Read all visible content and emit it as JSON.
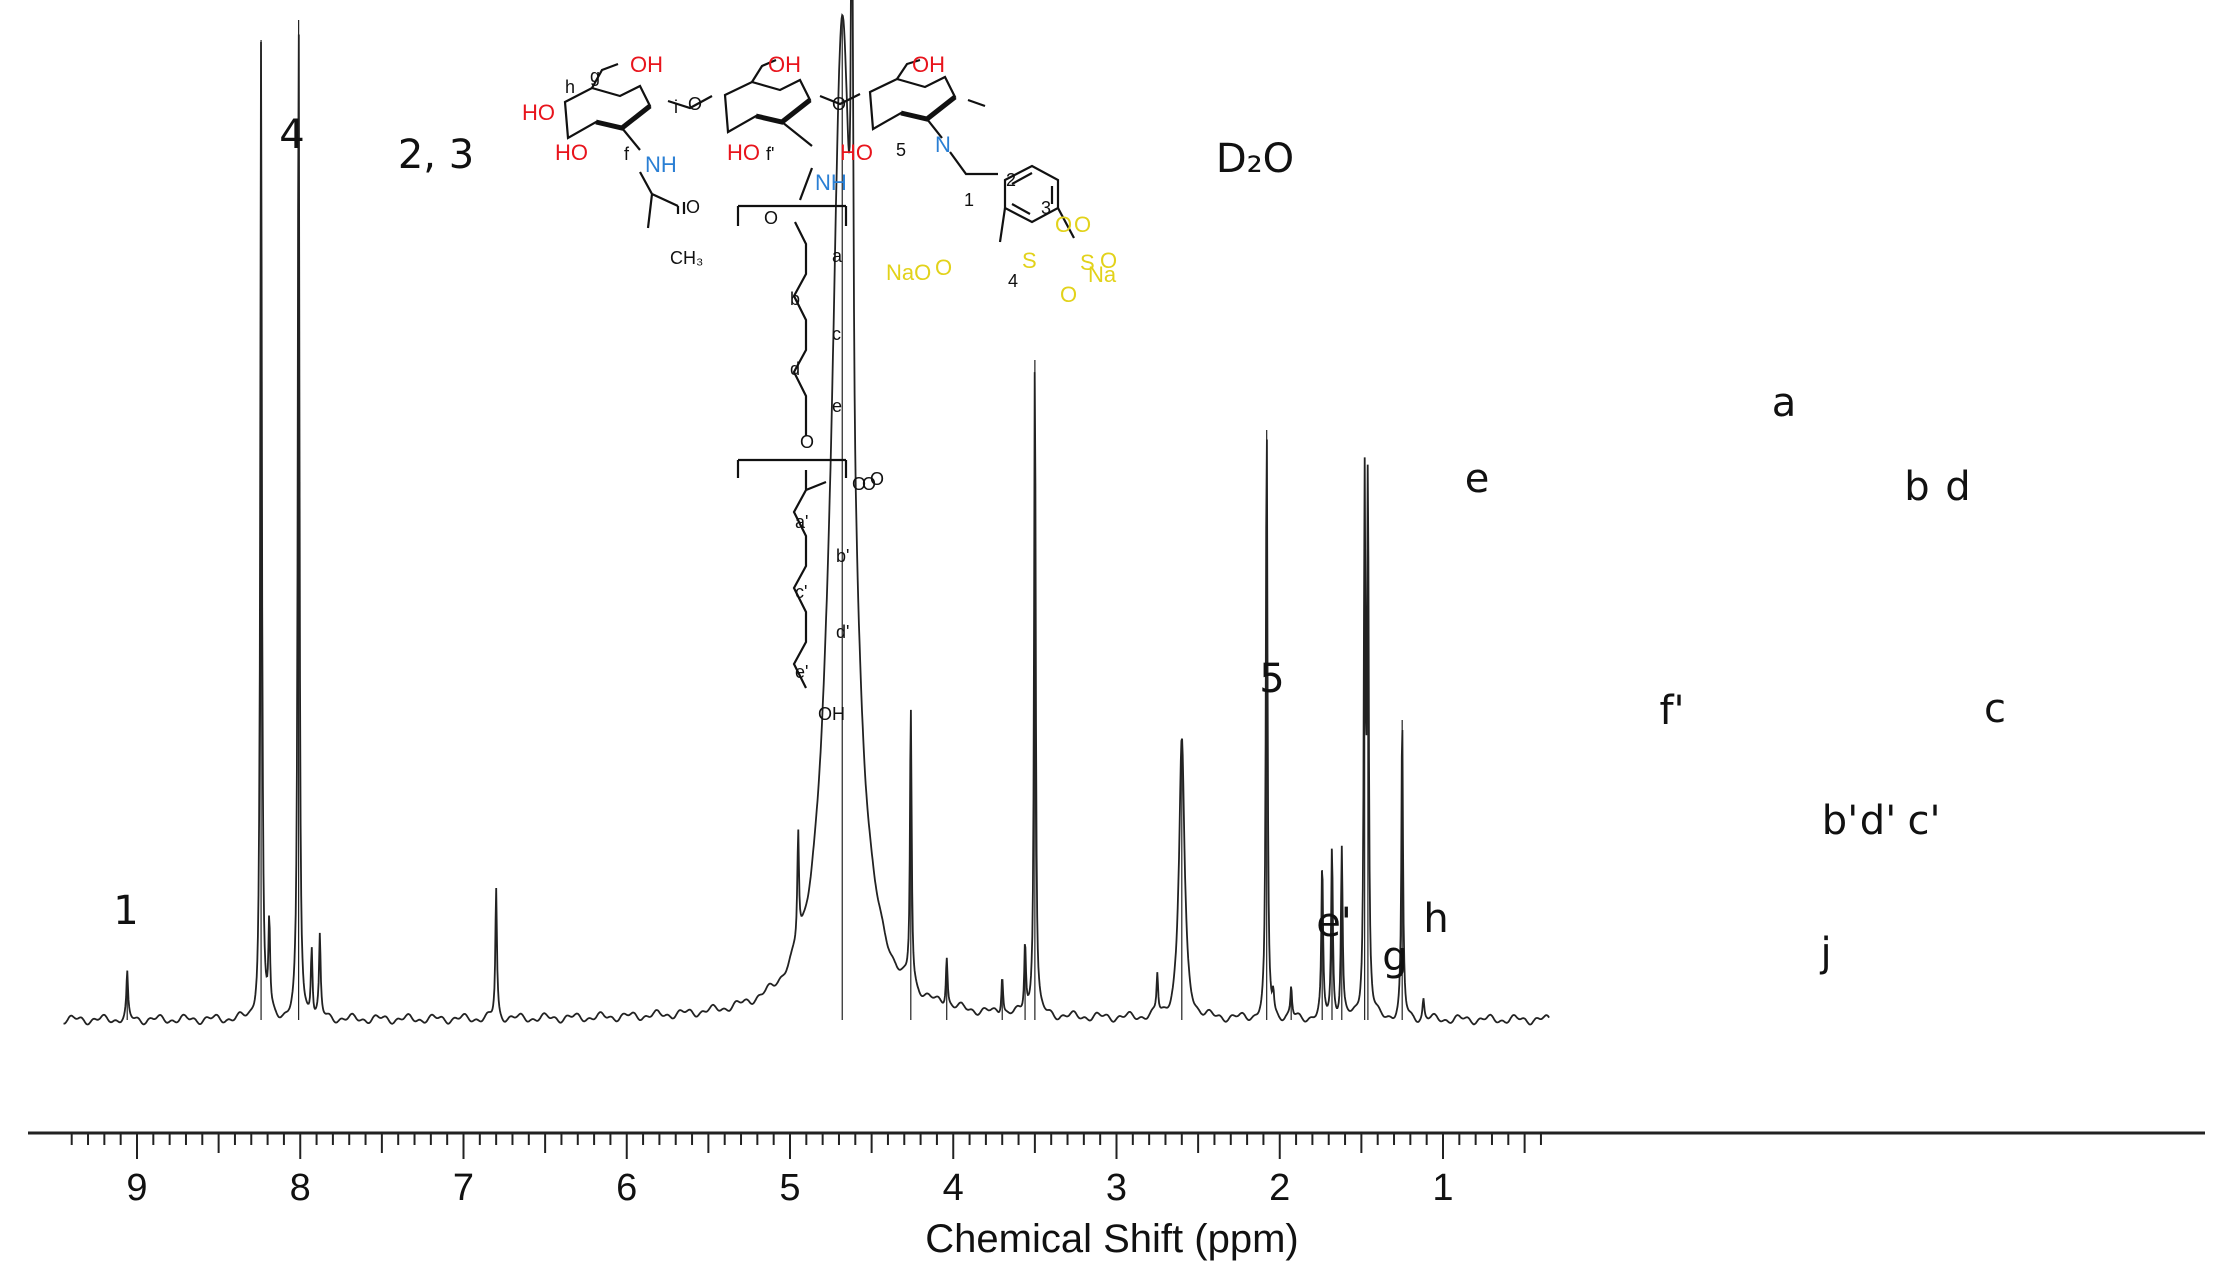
{
  "chart_data": {
    "type": "line",
    "xlabel": "Chemical Shift (ppm)",
    "xlim": [
      9.45,
      0.35
    ],
    "x_ticks": [
      "9",
      "8",
      "7",
      "6",
      "5",
      "4",
      "3",
      "2",
      "1"
    ],
    "peaks": [
      {
        "label": "1",
        "ppm": 9.06,
        "intensity": 0.045
      },
      {
        "label": "4",
        "ppm": 8.24,
        "intensity": 0.98
      },
      {
        "label": "2, 3",
        "ppm": 8.01,
        "intensity": 1.0
      },
      {
        "label": "D₂O",
        "ppm": 4.68,
        "intensity": 1.0
      },
      {
        "label": "5",
        "ppm": 4.26,
        "intensity": 0.28
      },
      {
        "label": "e'",
        "ppm": 4.04,
        "intensity": 0.05
      },
      {
        "label": "g",
        "ppm": 3.7,
        "intensity": 0.04
      },
      {
        "label": "h",
        "ppm": 3.56,
        "intensity": 0.07
      },
      {
        "label": "e",
        "ppm": 3.5,
        "intensity": 0.66
      },
      {
        "label": "f'",
        "ppm": 2.6,
        "intensity": 0.28
      },
      {
        "label": "a",
        "ppm": 2.08,
        "intensity": 0.59
      },
      {
        "label": "j",
        "ppm": 1.93,
        "intensity": 0.03
      },
      {
        "label": "b'",
        "ppm": 1.74,
        "intensity": 0.15
      },
      {
        "label": "d'",
        "ppm": 1.68,
        "intensity": 0.17
      },
      {
        "label": "c'",
        "ppm": 1.62,
        "intensity": 0.17
      },
      {
        "label": "b",
        "ppm": 1.48,
        "intensity": 0.52
      },
      {
        "label": "d",
        "ppm": 1.46,
        "intensity": 0.52
      },
      {
        "label": "c",
        "ppm": 1.25,
        "intensity": 0.3
      }
    ],
    "minor_peaks": [
      {
        "ppm": 8.19,
        "intensity": 0.09
      },
      {
        "ppm": 7.93,
        "intensity": 0.07
      },
      {
        "ppm": 7.88,
        "intensity": 0.08
      },
      {
        "ppm": 6.8,
        "intensity": 0.13
      },
      {
        "ppm": 4.62,
        "intensity": 0.78
      },
      {
        "ppm": 4.95,
        "intensity": 0.11
      },
      {
        "ppm": 2.75,
        "intensity": 0.04
      },
      {
        "ppm": 2.04,
        "intensity": 0.02
      },
      {
        "ppm": 1.12,
        "intensity": 0.02
      }
    ],
    "line_color": "#222222",
    "label_colors": {
      "black": "#111111",
      "red": "#e8141c",
      "blue": "#2a7fd4",
      "yellow": "#e2d21a"
    }
  },
  "structure": {
    "labels_black": [
      "h",
      "g",
      "i",
      "f",
      "f'",
      "5",
      "1",
      "2",
      "3",
      "4",
      "a",
      "b",
      "c",
      "d",
      "e",
      "a'",
      "b'",
      "c'",
      "d'",
      "e'",
      "O",
      "O",
      "O",
      "O",
      "O",
      "O",
      "O",
      "O",
      "CH₃",
      "OH"
    ],
    "labels_red": [
      "OH",
      "OH",
      "OH",
      "HO",
      "HO",
      "HO",
      "HO"
    ],
    "labels_blue": [
      "NH",
      "NH",
      "N"
    ],
    "labels_yellow": [
      "O",
      "O",
      "S",
      "S",
      "O",
      "O",
      "NaO",
      "O",
      "Na"
    ]
  }
}
